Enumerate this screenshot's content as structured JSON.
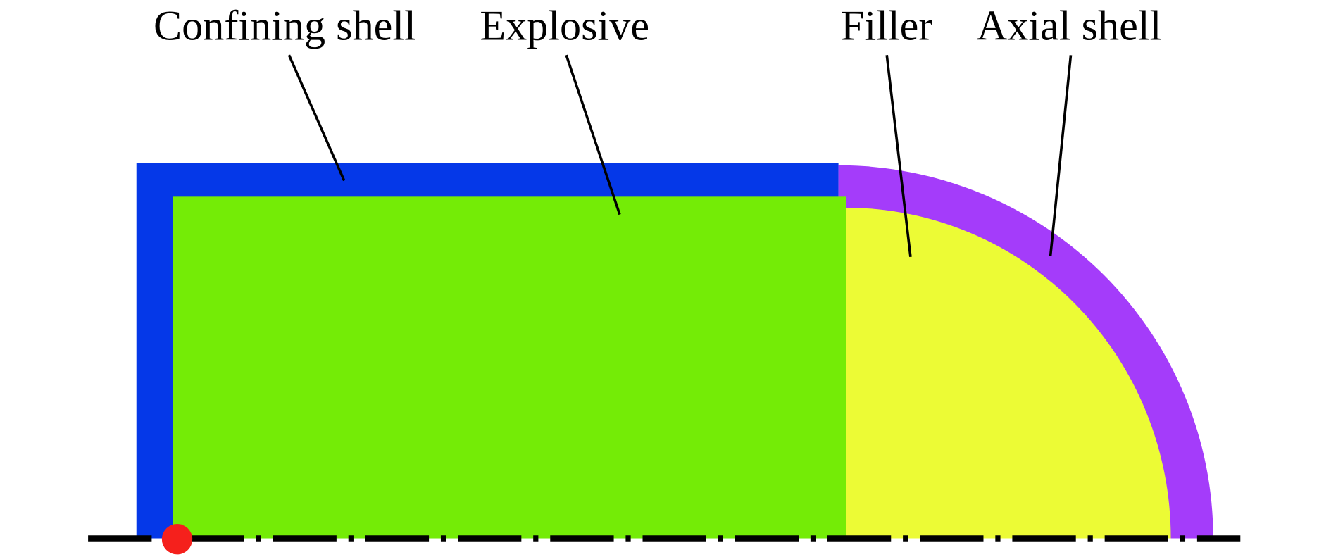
{
  "labels": {
    "confining_shell": "Confining shell",
    "explosive": "Explosive",
    "filler": "Filler",
    "axial_shell": "Axial shell"
  }
}
